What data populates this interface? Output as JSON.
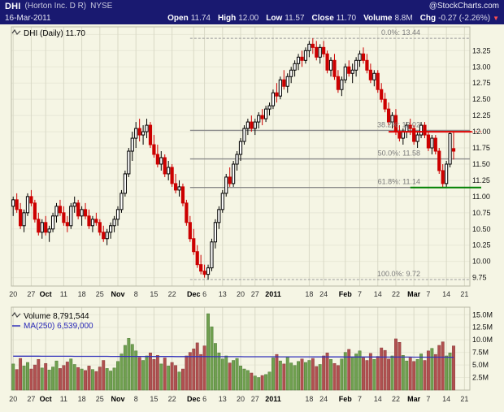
{
  "header": {
    "symbol": "DHI",
    "company": "(Horton Inc. D R)",
    "exchange": "NYSE",
    "site": "@StockCharts.com",
    "date": "16-Mar-2011",
    "fields": [
      {
        "label": "Open",
        "value": "11.74"
      },
      {
        "label": "High",
        "value": "12.00"
      },
      {
        "label": "Low",
        "value": "11.57"
      },
      {
        "label": "Close",
        "value": "11.70"
      },
      {
        "label": "Volume",
        "value": "8.8M"
      },
      {
        "label": "Chg",
        "value": "-0.27 (-2.26%)"
      }
    ],
    "chg_arrow": "▼"
  },
  "price_pane": {
    "legend": "DHI (Daily) 11.70"
  },
  "volume_pane": {
    "legend": "Volume 8,791,544",
    "ma_legend": "MA(250) 6,539,000",
    "y_labels": [
      "15.0M",
      "12.5M",
      "10.0M",
      "7.5M",
      "5.0M",
      "2.5M"
    ]
  },
  "colors": {
    "background": "#f5f5e4",
    "header_bg": "#191970",
    "candle_up": "#000000",
    "candle_up_fill": "#ffffff",
    "candle_down": "#cc0000",
    "volume_up": "#70a050",
    "volume_down": "#b05050",
    "volume_up_edge": "#4d7a36",
    "volume_down_edge": "#8a3c3c",
    "ma_line": "#3333bb",
    "fib_line": "#8a8a8a",
    "fib_text": "#7a7a7a",
    "frame": "#b9b9a6",
    "grid_v": "#d9d9c6",
    "grid_h": "#e8e8d6",
    "axis_text": "#111111",
    "tick_text": "#333333"
  },
  "chart_data": {
    "type": "candlestick",
    "symbol": "DHI",
    "timeframe": "Daily",
    "x_range": "20-Sep-2010 to 21-Mar-2011",
    "last_quote": {
      "open": 11.74,
      "high": 12.0,
      "low": 11.57,
      "close": 11.7,
      "volume_millions": 8.79,
      "change": -0.27,
      "change_pct": -2.26
    },
    "price_axis": {
      "min": 9.62,
      "max": 13.58,
      "tick_step": 0.25,
      "tick_labels": [
        "13.25",
        "13.00",
        "12.75",
        "12.50",
        "12.25",
        "12.00",
        "11.75",
        "11.50",
        "11.25",
        "11.00",
        "10.75",
        "10.50",
        "10.25",
        "10.00",
        "9.75"
      ]
    },
    "volume_axis": {
      "max": 16.5,
      "ticks": [
        {
          "v": 15,
          "label": "15.0M"
        },
        {
          "v": 12.5,
          "label": "12.5M"
        },
        {
          "v": 10,
          "label": "10.0M"
        },
        {
          "v": 7.5,
          "label": "7.5M"
        },
        {
          "v": 5,
          "label": "5.0M"
        },
        {
          "v": 2.5,
          "label": "2.5M"
        }
      ]
    },
    "x_ticks": [
      {
        "i": 0,
        "label": "20"
      },
      {
        "i": 5,
        "label": "27"
      },
      {
        "i": 9,
        "label": "Oct",
        "bold": true
      },
      {
        "i": 14,
        "label": "11"
      },
      {
        "i": 19,
        "label": "18"
      },
      {
        "i": 24,
        "label": "25"
      },
      {
        "i": 29,
        "label": "Nov",
        "bold": true
      },
      {
        "i": 34,
        "label": "8"
      },
      {
        "i": 39,
        "label": "15"
      },
      {
        "i": 44,
        "label": "22"
      },
      {
        "i": 50,
        "label": "Dec",
        "bold": true
      },
      {
        "i": 53,
        "label": "6"
      },
      {
        "i": 58,
        "label": "13"
      },
      {
        "i": 63,
        "label": "20"
      },
      {
        "i": 67,
        "label": "27"
      },
      {
        "i": 72,
        "label": "2011",
        "bold": true
      },
      {
        "i": 82,
        "label": "18"
      },
      {
        "i": 86,
        "label": "24"
      },
      {
        "i": 92,
        "label": "Feb",
        "bold": true
      },
      {
        "i": 96,
        "label": "7"
      },
      {
        "i": 101,
        "label": "14"
      },
      {
        "i": 106,
        "label": "22"
      },
      {
        "i": 111,
        "label": "Mar",
        "bold": true
      },
      {
        "i": 115,
        "label": "7"
      },
      {
        "i": 120,
        "label": "14"
      },
      {
        "i": 125,
        "label": "21"
      }
    ],
    "total_slots": 127,
    "fib_anchor_index": 49,
    "fib_levels": [
      {
        "label": "0.0%: 13.44",
        "price": 13.44,
        "style": "dashed"
      },
      {
        "label": "38.2%: 12.02",
        "price": 12.02,
        "style": "solid"
      },
      {
        "label": "50.0%: 11.58",
        "price": 11.58,
        "style": "solid"
      },
      {
        "label": "61.8%: 11.14",
        "price": 11.14,
        "style": "solid"
      },
      {
        "label": "100.0%: 9.72",
        "price": 9.72,
        "style": "dashed"
      }
    ],
    "hlines": [
      {
        "price": 12.0,
        "color": "#dd0000",
        "from_index": 104,
        "name": "resistance-line"
      },
      {
        "price": 11.14,
        "color": "#008000",
        "from_index": 110,
        "name": "support-line"
      }
    ],
    "ma250": {
      "start": 6.75,
      "end": 6.54,
      "last_value_label": "6,539,000"
    },
    "ohlcv": [
      [
        10.85,
        11.0,
        10.7,
        10.95,
        5.2
      ],
      [
        10.95,
        11.05,
        10.75,
        10.8,
        4.1
      ],
      [
        10.8,
        10.9,
        10.5,
        10.55,
        6.3
      ],
      [
        10.55,
        10.8,
        10.45,
        10.75,
        4.8
      ],
      [
        10.75,
        11.05,
        10.7,
        11.0,
        5.5
      ],
      [
        11.0,
        11.1,
        10.85,
        10.9,
        4.2
      ],
      [
        10.9,
        10.95,
        10.6,
        10.65,
        5.0
      ],
      [
        10.65,
        10.75,
        10.4,
        10.45,
        6.1
      ],
      [
        10.45,
        10.65,
        10.35,
        10.6,
        4.4
      ],
      [
        10.6,
        10.7,
        10.4,
        10.45,
        5.3
      ],
      [
        10.45,
        10.55,
        10.3,
        10.5,
        4.0
      ],
      [
        10.5,
        10.75,
        10.45,
        10.7,
        4.6
      ],
      [
        10.7,
        10.9,
        10.6,
        10.85,
        5.8
      ],
      [
        10.85,
        10.95,
        10.7,
        10.75,
        4.3
      ],
      [
        10.75,
        10.85,
        10.55,
        10.6,
        4.9
      ],
      [
        10.6,
        10.7,
        10.45,
        10.55,
        5.6
      ],
      [
        10.55,
        10.9,
        10.5,
        10.85,
        6.2
      ],
      [
        10.85,
        11.0,
        10.75,
        10.9,
        5.1
      ],
      [
        10.9,
        10.95,
        10.65,
        10.7,
        4.5
      ],
      [
        10.7,
        10.85,
        10.55,
        10.8,
        4.2
      ],
      [
        10.8,
        10.9,
        10.65,
        10.7,
        3.9
      ],
      [
        10.7,
        10.8,
        10.5,
        10.55,
        4.8
      ],
      [
        10.55,
        10.7,
        10.45,
        10.65,
        4.1
      ],
      [
        10.65,
        10.75,
        10.55,
        10.6,
        3.7
      ],
      [
        10.6,
        10.65,
        10.4,
        10.45,
        4.6
      ],
      [
        10.45,
        10.55,
        10.3,
        10.35,
        5.9
      ],
      [
        10.35,
        10.5,
        10.25,
        10.45,
        4.3
      ],
      [
        10.45,
        10.6,
        10.35,
        10.55,
        3.8
      ],
      [
        10.55,
        10.7,
        10.45,
        10.65,
        4.4
      ],
      [
        10.65,
        10.85,
        10.55,
        10.8,
        5.7
      ],
      [
        10.8,
        11.1,
        10.75,
        11.05,
        7.2
      ],
      [
        11.05,
        11.4,
        11.0,
        11.35,
        8.9
      ],
      [
        11.35,
        11.75,
        11.3,
        11.7,
        10.3
      ],
      [
        11.7,
        12.0,
        11.55,
        11.9,
        9.1
      ],
      [
        11.9,
        12.15,
        11.75,
        12.05,
        7.8
      ],
      [
        12.05,
        12.2,
        11.85,
        11.95,
        6.5
      ],
      [
        11.95,
        12.1,
        11.8,
        12.0,
        5.9
      ],
      [
        12.0,
        12.2,
        11.9,
        12.1,
        6.8
      ],
      [
        12.1,
        12.15,
        11.75,
        11.8,
        7.4
      ],
      [
        11.8,
        11.95,
        11.6,
        11.65,
        6.1
      ],
      [
        11.65,
        11.8,
        11.45,
        11.5,
        6.9
      ],
      [
        11.5,
        11.7,
        11.4,
        11.6,
        5.2
      ],
      [
        11.6,
        11.65,
        11.3,
        11.35,
        6.4
      ],
      [
        11.35,
        11.55,
        11.25,
        11.45,
        4.8
      ],
      [
        11.45,
        11.5,
        11.15,
        11.2,
        5.5
      ],
      [
        11.2,
        11.35,
        11.05,
        11.1,
        4.9
      ],
      [
        11.1,
        11.25,
        11.0,
        11.15,
        3.6
      ],
      [
        11.15,
        11.2,
        10.85,
        10.9,
        4.2
      ],
      [
        10.9,
        10.95,
        10.55,
        10.6,
        6.8
      ],
      [
        10.6,
        10.7,
        10.3,
        10.35,
        7.5
      ],
      [
        10.35,
        10.5,
        10.1,
        10.15,
        8.2
      ],
      [
        10.15,
        10.25,
        9.9,
        9.95,
        9.4
      ],
      [
        9.95,
        10.1,
        9.8,
        9.85,
        7.1
      ],
      [
        9.85,
        9.95,
        9.75,
        9.8,
        8.8
      ],
      [
        9.8,
        9.95,
        9.72,
        9.9,
        15.2
      ],
      [
        9.9,
        10.35,
        9.85,
        10.3,
        12.6
      ],
      [
        10.3,
        10.65,
        10.2,
        10.6,
        9.3
      ],
      [
        10.6,
        10.85,
        10.5,
        10.8,
        7.4
      ],
      [
        10.8,
        11.1,
        10.75,
        11.05,
        6.2
      ],
      [
        11.05,
        11.35,
        11.0,
        11.3,
        6.8
      ],
      [
        11.3,
        11.45,
        11.15,
        11.2,
        5.4
      ],
      [
        11.2,
        11.55,
        11.15,
        11.5,
        5.9
      ],
      [
        11.5,
        11.7,
        11.4,
        11.65,
        6.3
      ],
      [
        11.65,
        11.9,
        11.55,
        11.85,
        4.8
      ],
      [
        11.85,
        12.1,
        11.8,
        12.05,
        4.2
      ],
      [
        12.05,
        12.2,
        11.95,
        12.15,
        3.9
      ],
      [
        12.15,
        12.25,
        12.0,
        12.05,
        3.4
      ],
      [
        12.05,
        12.2,
        11.95,
        12.15,
        2.8
      ],
      [
        12.15,
        12.3,
        12.05,
        12.25,
        2.5
      ],
      [
        12.25,
        12.35,
        12.1,
        12.2,
        2.9
      ],
      [
        12.2,
        12.4,
        12.15,
        12.35,
        3.1
      ],
      [
        12.35,
        12.45,
        12.25,
        12.4,
        3.6
      ],
      [
        12.4,
        12.65,
        12.35,
        12.6,
        6.4
      ],
      [
        12.6,
        12.75,
        12.45,
        12.55,
        7.1
      ],
      [
        12.55,
        12.85,
        12.5,
        12.8,
        5.8
      ],
      [
        12.8,
        12.95,
        12.65,
        12.7,
        5.2
      ],
      [
        12.7,
        12.9,
        12.6,
        12.85,
        6.6
      ],
      [
        12.85,
        13.0,
        12.75,
        12.95,
        5.4
      ],
      [
        12.95,
        13.1,
        12.85,
        13.05,
        4.9
      ],
      [
        13.05,
        13.2,
        12.95,
        13.15,
        5.7
      ],
      [
        13.15,
        13.25,
        13.0,
        13.1,
        6.2
      ],
      [
        13.1,
        13.3,
        13.05,
        13.25,
        5.5
      ],
      [
        13.25,
        13.4,
        13.15,
        13.35,
        5.9
      ],
      [
        13.35,
        13.44,
        13.2,
        13.3,
        6.3
      ],
      [
        13.3,
        13.4,
        13.1,
        13.15,
        4.7
      ],
      [
        13.15,
        13.35,
        13.05,
        13.3,
        5.1
      ],
      [
        13.3,
        13.4,
        13.15,
        13.2,
        6.8
      ],
      [
        13.2,
        13.25,
        12.9,
        12.95,
        7.4
      ],
      [
        12.95,
        13.15,
        12.85,
        13.1,
        6.1
      ],
      [
        13.1,
        13.2,
        12.8,
        12.85,
        5.3
      ],
      [
        12.85,
        12.95,
        12.6,
        12.65,
        4.9
      ],
      [
        12.65,
        12.85,
        12.55,
        12.8,
        6.2
      ],
      [
        12.8,
        13.05,
        12.75,
        13.0,
        7.5
      ],
      [
        13.0,
        13.1,
        12.85,
        12.9,
        8.1
      ],
      [
        12.9,
        13.05,
        12.75,
        12.95,
        6.6
      ],
      [
        12.95,
        13.15,
        12.85,
        13.1,
        7.2
      ],
      [
        13.1,
        13.25,
        13.0,
        13.2,
        7.8
      ],
      [
        13.2,
        13.3,
        13.05,
        13.1,
        6.4
      ],
      [
        13.1,
        13.2,
        12.9,
        12.95,
        5.9
      ],
      [
        12.95,
        13.05,
        12.75,
        12.8,
        7.3
      ],
      [
        12.8,
        12.95,
        12.7,
        12.9,
        6.1
      ],
      [
        12.9,
        12.95,
        12.6,
        12.65,
        6.7
      ],
      [
        12.65,
        12.75,
        12.45,
        12.5,
        8.4
      ],
      [
        12.5,
        12.6,
        12.3,
        12.35,
        7.9
      ],
      [
        12.35,
        12.45,
        12.1,
        12.15,
        6.2
      ],
      [
        12.15,
        12.3,
        12.05,
        12.25,
        6.8
      ],
      [
        12.25,
        12.35,
        11.95,
        12.0,
        10.2
      ],
      [
        12.0,
        12.1,
        11.85,
        11.9,
        9.5
      ],
      [
        11.9,
        12.05,
        11.8,
        12.0,
        6.9
      ],
      [
        12.0,
        12.15,
        11.9,
        12.1,
        5.8
      ],
      [
        12.1,
        12.2,
        11.95,
        12.05,
        6.4
      ],
      [
        12.05,
        12.1,
        11.8,
        11.85,
        5.7
      ],
      [
        11.85,
        12.0,
        11.75,
        11.95,
        6.1
      ],
      [
        11.95,
        12.15,
        11.9,
        12.1,
        7.2
      ],
      [
        12.1,
        12.15,
        11.9,
        11.95,
        5.9
      ],
      [
        11.95,
        12.0,
        11.7,
        11.75,
        7.8
      ],
      [
        11.75,
        11.95,
        11.65,
        11.9,
        8.3
      ],
      [
        11.9,
        11.95,
        11.65,
        11.7,
        7.1
      ],
      [
        11.7,
        11.75,
        11.35,
        11.4,
        8.9
      ],
      [
        11.4,
        11.5,
        11.14,
        11.2,
        9.6
      ],
      [
        11.2,
        11.55,
        11.15,
        11.5,
        6.8
      ],
      [
        11.5,
        12.0,
        11.45,
        11.97,
        7.4
      ],
      [
        11.74,
        12.0,
        11.57,
        11.7,
        8.79
      ]
    ]
  }
}
